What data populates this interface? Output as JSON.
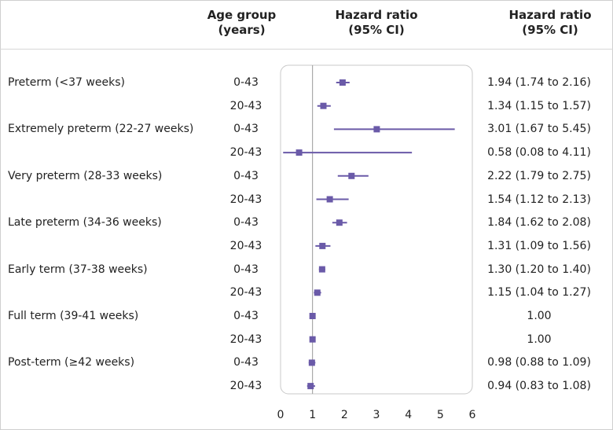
{
  "headers": {
    "age_group": [
      "Age group",
      "(years)"
    ],
    "hazard_ratio": [
      "Hazard ratio",
      "(95% CI)"
    ],
    "hazard_ratio_ci": [
      "Hazard ratio",
      "(95% CI)"
    ]
  },
  "colors": {
    "marker": "#6a5aa8",
    "reference_line": "#9a9a9a",
    "panel_border": "#c8c8c8"
  },
  "chart_data": {
    "type": "forest",
    "title": "",
    "xlabel": "",
    "ylabel": "",
    "xlim": [
      0,
      6
    ],
    "xticks": [
      "0",
      "1",
      "2",
      "3",
      "4",
      "5",
      "6"
    ],
    "reference_value": 1,
    "grid": false,
    "rows": [
      {
        "label": "Preterm (<37 weeks)",
        "age": "0-43",
        "hr": 1.94,
        "lo": 1.74,
        "hi": 2.16,
        "ci_text": "1.94 (1.74 to 2.16)"
      },
      {
        "label": "",
        "age": "20-43",
        "hr": 1.34,
        "lo": 1.15,
        "hi": 1.57,
        "ci_text": "1.34 (1.15 to 1.57)"
      },
      {
        "label": "Extremely preterm (22-27 weeks)",
        "age": "0-43",
        "hr": 3.01,
        "lo": 1.67,
        "hi": 5.45,
        "ci_text": "3.01 (1.67 to 5.45)"
      },
      {
        "label": "",
        "age": "20-43",
        "hr": 0.58,
        "lo": 0.08,
        "hi": 4.11,
        "ci_text": "0.58 (0.08 to 4.11)"
      },
      {
        "label": "Very preterm (28-33 weeks)",
        "age": "0-43",
        "hr": 2.22,
        "lo": 1.79,
        "hi": 2.75,
        "ci_text": "2.22 (1.79 to 2.75)"
      },
      {
        "label": "",
        "age": "20-43",
        "hr": 1.54,
        "lo": 1.12,
        "hi": 2.13,
        "ci_text": "1.54 (1.12 to 2.13)"
      },
      {
        "label": "Late preterm (34-36 weeks)",
        "age": "0-43",
        "hr": 1.84,
        "lo": 1.62,
        "hi": 2.08,
        "ci_text": "1.84 (1.62 to 2.08)"
      },
      {
        "label": "",
        "age": "20-43",
        "hr": 1.31,
        "lo": 1.09,
        "hi": 1.56,
        "ci_text": "1.31 (1.09 to 1.56)"
      },
      {
        "label": "Early term (37-38 weeks)",
        "age": "0-43",
        "hr": 1.3,
        "lo": 1.2,
        "hi": 1.4,
        "ci_text": "1.30 (1.20 to 1.40)"
      },
      {
        "label": "",
        "age": "20-43",
        "hr": 1.15,
        "lo": 1.04,
        "hi": 1.27,
        "ci_text": "1.15 (1.04 to 1.27)"
      },
      {
        "label": "Full term (39-41 weeks)",
        "age": "0-43",
        "hr": 1.0,
        "lo": 1.0,
        "hi": 1.0,
        "ci_text": "1.00"
      },
      {
        "label": "",
        "age": "20-43",
        "hr": 1.0,
        "lo": 1.0,
        "hi": 1.0,
        "ci_text": "1.00"
      },
      {
        "label": "Post-term (≥42 weeks)",
        "age": "0-43",
        "hr": 0.98,
        "lo": 0.88,
        "hi": 1.09,
        "ci_text": "0.98 (0.88 to 1.09)"
      },
      {
        "label": "",
        "age": "20-43",
        "hr": 0.94,
        "lo": 0.83,
        "hi": 1.08,
        "ci_text": "0.94 (0.83 to 1.08)"
      }
    ]
  }
}
